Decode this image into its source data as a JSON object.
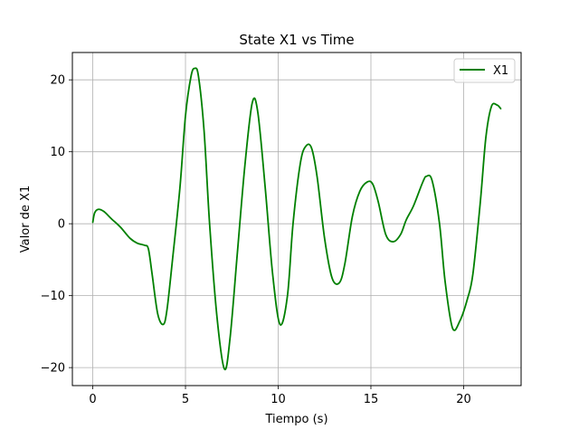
{
  "chart_data": {
    "type": "line",
    "title": "State X1 vs Time",
    "xlabel": "Tiempo (s)",
    "ylabel": "Valor de X1",
    "xlim": [
      -1.1,
      23.1
    ],
    "ylim": [
      -22.5,
      23.8
    ],
    "xticks": [
      0,
      5,
      10,
      15,
      20
    ],
    "yticks": [
      -20,
      -10,
      0,
      10,
      20
    ],
    "xtick_labels": [
      "0",
      "5",
      "10",
      "15",
      "20"
    ],
    "ytick_labels": [
      "−20",
      "−10",
      "0",
      "10",
      "20"
    ],
    "grid": true,
    "legend_position": "top-right",
    "series": [
      {
        "name": "X1",
        "color": "#008000",
        "x": [
          0,
          0.1,
          0.3,
          0.6,
          1.0,
          1.5,
          2.0,
          2.4,
          2.8,
          3.0,
          3.2,
          3.5,
          3.8,
          4.0,
          4.3,
          4.7,
          5.0,
          5.3,
          5.5,
          5.7,
          6.0,
          6.3,
          6.7,
          7.1,
          7.4,
          7.8,
          8.2,
          8.6,
          8.9,
          9.3,
          9.7,
          10.1,
          10.5,
          10.8,
          11.2,
          11.5,
          11.8,
          12.1,
          12.5,
          12.9,
          13.3,
          13.6,
          14.0,
          14.4,
          14.8,
          15.1,
          15.4,
          15.8,
          16.2,
          16.6,
          16.9,
          17.3,
          17.8,
          18.0,
          18.3,
          18.7,
          19.0,
          19.4,
          19.8,
          20.2,
          20.5,
          20.9,
          21.2,
          21.5,
          21.8,
          22.0
        ],
        "y": [
          0.2,
          1.5,
          2.0,
          1.7,
          0.7,
          -0.5,
          -2.0,
          -2.7,
          -3.0,
          -3.5,
          -7.0,
          -12.5,
          -14.0,
          -12.0,
          -5.0,
          5.0,
          15.0,
          20.5,
          21.6,
          20.5,
          13.0,
          0.0,
          -13.0,
          -20.2,
          -16.0,
          -4.0,
          8.0,
          16.8,
          15.5,
          5.0,
          -7.0,
          -14.0,
          -10.0,
          0.0,
          8.5,
          10.8,
          10.5,
          6.5,
          -2.0,
          -7.5,
          -8.2,
          -5.5,
          1.0,
          4.5,
          5.8,
          5.5,
          3.0,
          -1.5,
          -2.5,
          -1.5,
          0.5,
          2.5,
          5.8,
          6.6,
          6.0,
          0.0,
          -8.0,
          -14.5,
          -13.5,
          -10.5,
          -7.0,
          3.0,
          12.0,
          16.3,
          16.5,
          16.0
        ]
      }
    ]
  }
}
